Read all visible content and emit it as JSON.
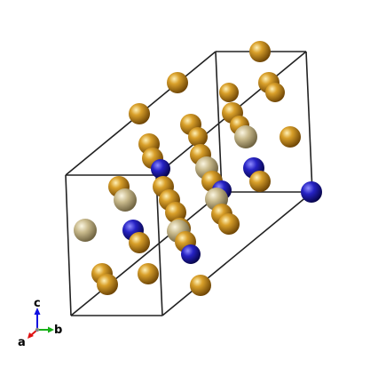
{
  "axes": {
    "a": "a",
    "b": "b",
    "c": "c"
  },
  "colors": {
    "cell_edge": "#222222",
    "atom_gold": "#c4870f",
    "atom_beige": "#c6b78a",
    "atom_blue": "#1d1aa8",
    "axis_a": "#e01010",
    "axis_b": "#18b018",
    "axis_c": "#1010e0"
  }
}
